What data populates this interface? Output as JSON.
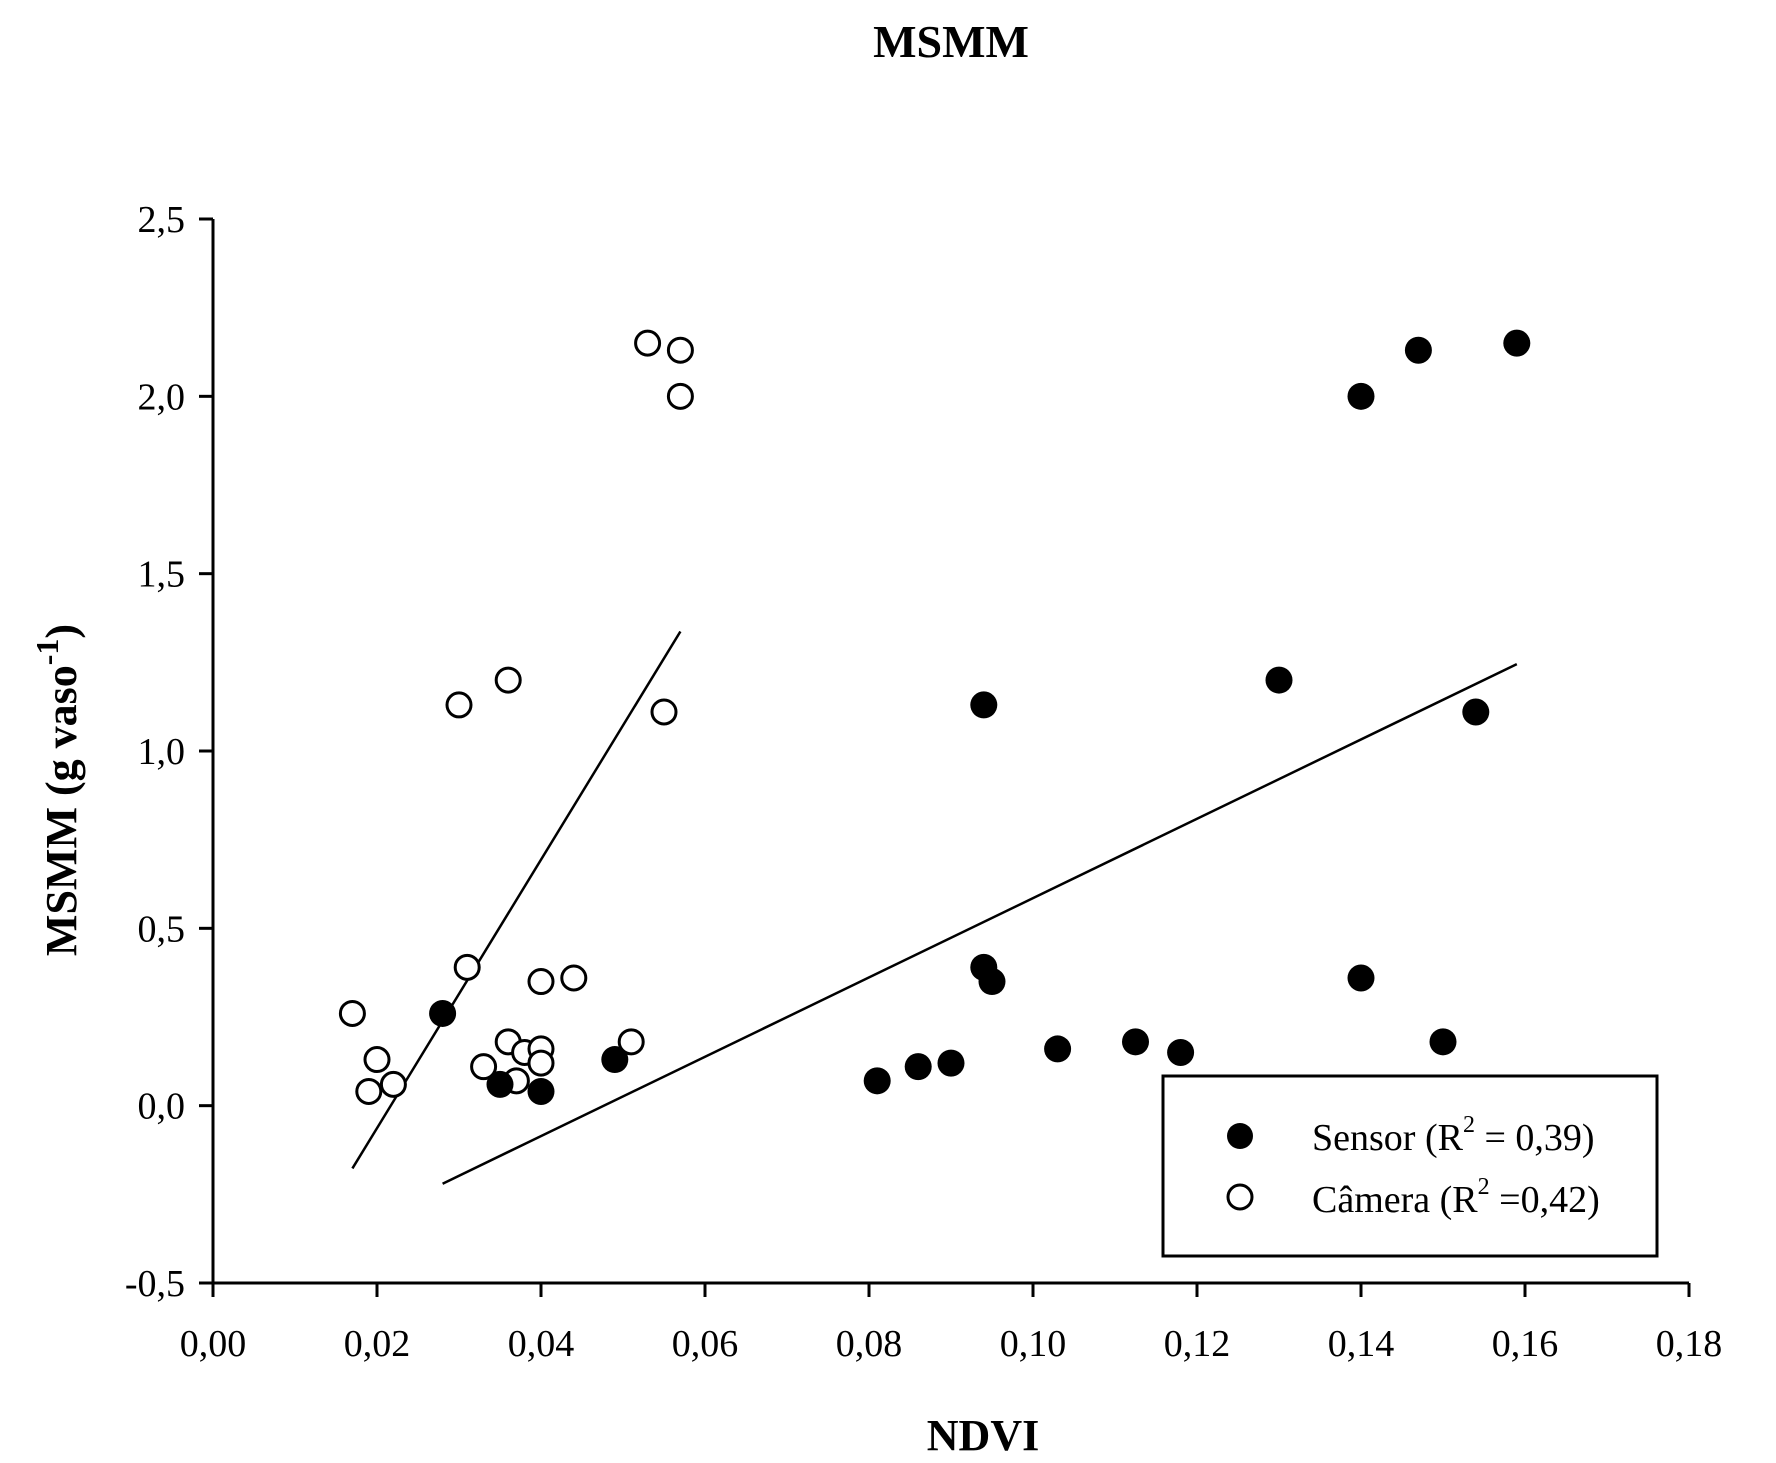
{
  "chart_data": {
    "type": "scatter",
    "title": "MSMM",
    "xlabel": "NDVI",
    "ylabel": {
      "main": "MSMM (g vaso",
      "superscript": "-1",
      "close": ")"
    },
    "xlim": [
      0.0,
      0.18
    ],
    "ylim": [
      -0.5,
      2.5
    ],
    "xticks": [
      0.0,
      0.02,
      0.04,
      0.06,
      0.08,
      0.1,
      0.12,
      0.14,
      0.16,
      0.18
    ],
    "xtick_labels": [
      "0,00",
      "0,02",
      "0,04",
      "0,06",
      "0,08",
      "0,10",
      "0,12",
      "0,14",
      "0,16",
      "0,18"
    ],
    "yticks": [
      -0.5,
      0.0,
      0.5,
      1.0,
      1.5,
      2.0,
      2.5
    ],
    "ytick_labels": [
      "-0,5",
      "0,0",
      "0,5",
      "1,0",
      "1,5",
      "2,0",
      "2,5"
    ],
    "grid": false,
    "legend_position": "bottom-right",
    "series": [
      {
        "name": "Sensor",
        "marker": "filled-circle",
        "legend_label": {
          "prefix": "Sensor (R",
          "sup": "2",
          "suffix": " = 0,39)"
        },
        "r_squared": 0.39,
        "points": [
          [
            0.028,
            0.26
          ],
          [
            0.035,
            0.06
          ],
          [
            0.04,
            0.04
          ],
          [
            0.049,
            0.13
          ],
          [
            0.081,
            0.07
          ],
          [
            0.086,
            0.11
          ],
          [
            0.09,
            0.12
          ],
          [
            0.094,
            0.39
          ],
          [
            0.095,
            0.35
          ],
          [
            0.094,
            1.13
          ],
          [
            0.103,
            0.16
          ],
          [
            0.1125,
            0.18
          ],
          [
            0.118,
            0.15
          ],
          [
            0.13,
            1.2
          ],
          [
            0.14,
            0.36
          ],
          [
            0.14,
            2.0
          ],
          [
            0.147,
            2.13
          ],
          [
            0.15,
            0.18
          ],
          [
            0.154,
            1.11
          ],
          [
            0.159,
            2.15
          ]
        ],
        "fit_line": [
          [
            0.028,
            -0.22
          ],
          [
            0.159,
            1.245
          ]
        ]
      },
      {
        "name": "Câmera",
        "marker": "open-circle",
        "legend_label": {
          "prefix": "Câmera (R",
          "sup": "2",
          "suffix": " =0,42)"
        },
        "r_squared": 0.42,
        "points": [
          [
            0.017,
            0.26
          ],
          [
            0.019,
            0.04
          ],
          [
            0.02,
            0.13
          ],
          [
            0.022,
            0.06
          ],
          [
            0.03,
            1.13
          ],
          [
            0.031,
            0.39
          ],
          [
            0.033,
            0.11
          ],
          [
            0.036,
            0.18
          ],
          [
            0.036,
            1.2
          ],
          [
            0.037,
            0.07
          ],
          [
            0.038,
            0.15
          ],
          [
            0.04,
            0.16
          ],
          [
            0.04,
            0.12
          ],
          [
            0.04,
            0.35
          ],
          [
            0.044,
            0.36
          ],
          [
            0.051,
            0.18
          ],
          [
            0.053,
            2.15
          ],
          [
            0.055,
            1.11
          ],
          [
            0.057,
            2.13
          ],
          [
            0.057,
            2.0
          ]
        ],
        "fit_line": [
          [
            0.017,
            -0.177
          ],
          [
            0.057,
            1.337
          ]
        ]
      }
    ]
  }
}
